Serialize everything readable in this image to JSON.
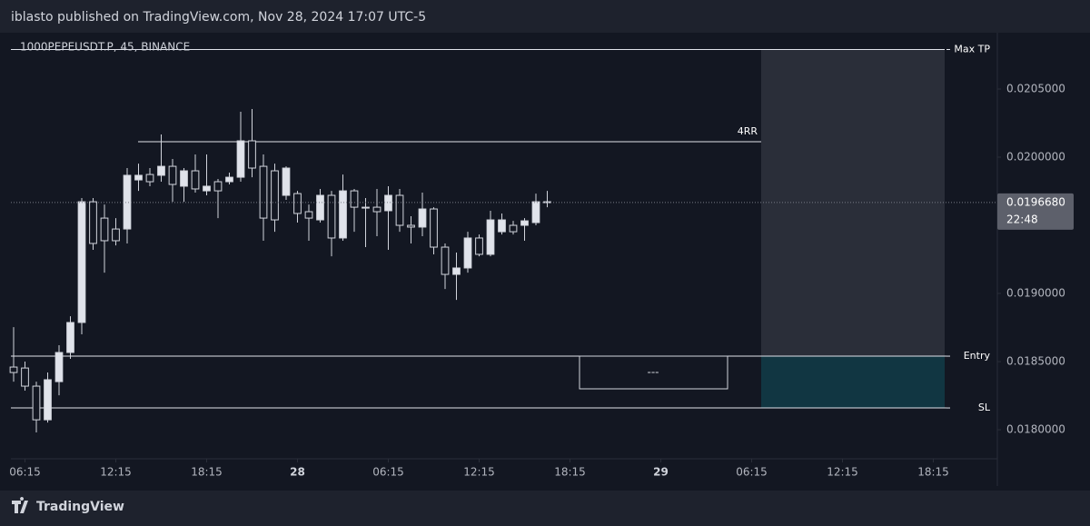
{
  "header": "iblasto published on TradingView.com, Nov 28, 2024 17:07 UTC-5",
  "footer": "TradingView",
  "chart_data": {
    "type": "candlestick",
    "title": "1000PEPEUSDT.P, 45, BINANCE",
    "open": [
      0.01846,
      0.018453,
      0.01832,
      0.018073,
      0.018353,
      0.018567,
      0.018787,
      0.019673,
      0.019553,
      0.019473,
      0.019473,
      0.019833,
      0.019873,
      0.019867,
      0.019933,
      0.019787,
      0.0199,
      0.019753,
      0.01982,
      0.01982,
      0.019853,
      0.02012,
      0.019933,
      0.0199,
      0.01972,
      0.019733,
      0.0196,
      0.01954,
      0.01972,
      0.019407,
      0.019753,
      0.019633,
      0.019633,
      0.019607,
      0.01972,
      0.0195,
      0.019487,
      0.01962,
      0.01934,
      0.01914,
      0.019187,
      0.019407,
      0.019287,
      0.019453,
      0.0195,
      0.0195,
      0.01952,
      0.019673
    ],
    "high": [
      0.018753,
      0.0185,
      0.018353,
      0.01842,
      0.01862,
      0.018833,
      0.0197,
      0.0197,
      0.019653,
      0.019553,
      0.01992,
      0.019953,
      0.01992,
      0.020167,
      0.019987,
      0.01992,
      0.02002,
      0.02002,
      0.01984,
      0.019887,
      0.020333,
      0.020353,
      0.02002,
      0.019953,
      0.019933,
      0.019753,
      0.019653,
      0.019767,
      0.019753,
      0.019873,
      0.019767,
      0.0197,
      0.019767,
      0.019787,
      0.019767,
      0.019567,
      0.01974,
      0.019633,
      0.019367,
      0.0193,
      0.019453,
      0.019433,
      0.019607,
      0.019587,
      0.019533,
      0.019553,
      0.019733,
      0.019753
    ],
    "low": [
      0.018353,
      0.018287,
      0.01798,
      0.018053,
      0.018253,
      0.01852,
      0.0187,
      0.01932,
      0.019153,
      0.019353,
      0.019367,
      0.019753,
      0.019787,
      0.01982,
      0.019673,
      0.019673,
      0.01974,
      0.01972,
      0.019553,
      0.0198,
      0.01982,
      0.019853,
      0.019387,
      0.019453,
      0.019687,
      0.01952,
      0.019387,
      0.01952,
      0.019273,
      0.019387,
      0.019453,
      0.01934,
      0.01942,
      0.01932,
      0.019453,
      0.019367,
      0.01942,
      0.019287,
      0.019033,
      0.018953,
      0.019153,
      0.019273,
      0.019273,
      0.019433,
      0.019433,
      0.019387,
      0.0195,
      0.019633
    ],
    "close": [
      0.01842,
      0.01832,
      0.018073,
      0.018367,
      0.018567,
      0.018787,
      0.019673,
      0.019367,
      0.019387,
      0.019387,
      0.019867,
      0.019867,
      0.01982,
      0.019933,
      0.0198,
      0.0199,
      0.019767,
      0.019787,
      0.019753,
      0.019853,
      0.02012,
      0.01992,
      0.019553,
      0.01954,
      0.01992,
      0.019587,
      0.019553,
      0.01972,
      0.019407,
      0.019753,
      0.019633,
      0.019627,
      0.0196,
      0.01972,
      0.0195,
      0.019487,
      0.01962,
      0.01934,
      0.01914,
      0.019187,
      0.019407,
      0.019287,
      0.01954,
      0.01954,
      0.019453,
      0.019533,
      0.019673,
      0.019668
    ],
    "up_color": "#e0e3eb",
    "down_color": "#131722",
    "wick_color": "#d1d4dc",
    "xlim": [
      -0.24,
      86.64
    ],
    "xticks": [
      {
        "value": 1,
        "label": "06:15"
      },
      {
        "value": 9,
        "label": "12:15"
      },
      {
        "value": 17,
        "label": "18:15"
      },
      {
        "value": 25,
        "label": "28"
      },
      {
        "value": 33,
        "label": "06:15"
      },
      {
        "value": 41,
        "label": "12:15"
      },
      {
        "value": 49,
        "label": "18:15"
      },
      {
        "value": 57,
        "label": "29"
      },
      {
        "value": 65,
        "label": "06:15"
      },
      {
        "value": 73,
        "label": "12:15"
      },
      {
        "value": 81,
        "label": "18:15"
      }
    ],
    "ylim": [
      0.017787,
      0.02086
    ],
    "yticks": [
      {
        "value": 0.018,
        "label": "0.0180000"
      },
      {
        "value": 0.0185,
        "label": "0.0185000"
      },
      {
        "value": 0.019,
        "label": "0.0190000"
      },
      {
        "value": 0.0195,
        "label": "0.0195000"
      },
      {
        "value": 0.02,
        "label": "0.0200000"
      },
      {
        "value": 0.0205,
        "label": "0.0205000"
      }
    ],
    "last_price": {
      "value": 0.019668,
      "label": "0.0196680",
      "countdown": "22:48"
    },
    "levels": [
      {
        "label": "Max TP",
        "value": 0.02079
      },
      {
        "label": "Entry",
        "value": 0.01854
      },
      {
        "label": "SL",
        "value": 0.01816
      }
    ],
    "target_line": {
      "label": "4RR",
      "value": 0.020113,
      "from": 10.96,
      "to": 65.84
    },
    "position": {
      "start": 65.84,
      "end": 82,
      "profit_color": "#2a2e39",
      "loss_color": "#113642"
    },
    "note": "---"
  }
}
